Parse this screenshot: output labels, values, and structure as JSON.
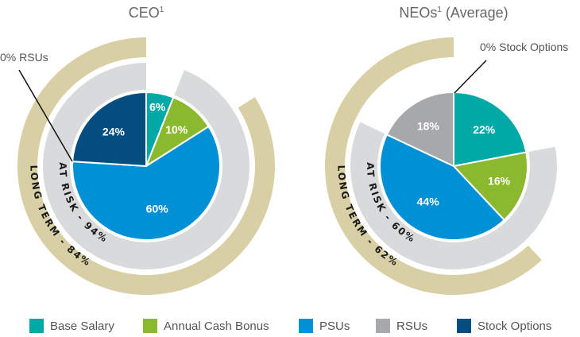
{
  "chart_data": [
    {
      "type": "pie",
      "title": "CEO",
      "title_sup": "1",
      "slices": [
        {
          "name": "Base Salary",
          "value": 6,
          "label": "6%"
        },
        {
          "name": "Annual Cash Bonus",
          "value": 10,
          "label": "10%"
        },
        {
          "name": "PSUs",
          "value": 60,
          "label": "60%"
        },
        {
          "name": "RSUs",
          "value": 0,
          "label": ""
        },
        {
          "name": "Stock Options",
          "value": 24,
          "label": "24%"
        }
      ],
      "rings": [
        {
          "name": "at-risk",
          "label": "AT RISK - 94%",
          "value": 94,
          "start_pct": 6
        },
        {
          "name": "long-term",
          "label": "LONG TERM - 84%",
          "value": 84,
          "start_pct": 16
        }
      ],
      "annotation": "0% RSUs"
    },
    {
      "type": "pie",
      "title": "NEOs",
      "title_sup": "1",
      "title_suffix": " (Average)",
      "slices": [
        {
          "name": "Base Salary",
          "value": 22,
          "label": "22%"
        },
        {
          "name": "Annual Cash Bonus",
          "value": 16,
          "label": "16%"
        },
        {
          "name": "PSUs",
          "value": 44,
          "label": "44%"
        },
        {
          "name": "RSUs",
          "value": 18,
          "label": "18%"
        },
        {
          "name": "Stock Options",
          "value": 0,
          "label": ""
        }
      ],
      "rings": [
        {
          "name": "at-risk",
          "label": "AT RISK - 60%",
          "value": 60,
          "start_pct": 22
        },
        {
          "name": "long-term",
          "label": "LONG TERM - 62%",
          "value": 62,
          "start_pct": 38
        }
      ],
      "annotation": "0% Stock Options"
    }
  ],
  "legend": [
    {
      "label": "Base Salary",
      "color": "#00A9A6"
    },
    {
      "label": "Annual Cash Bonus",
      "color": "#8AB92D"
    },
    {
      "label": "PSUs",
      "color": "#0090D5"
    },
    {
      "label": "RSUs",
      "color": "#A6A8AB"
    },
    {
      "label": "Stock Options",
      "color": "#034D80"
    }
  ],
  "ring_colors": {
    "at-risk": "#D9DADB",
    "long-term": "#D9CFA5"
  }
}
